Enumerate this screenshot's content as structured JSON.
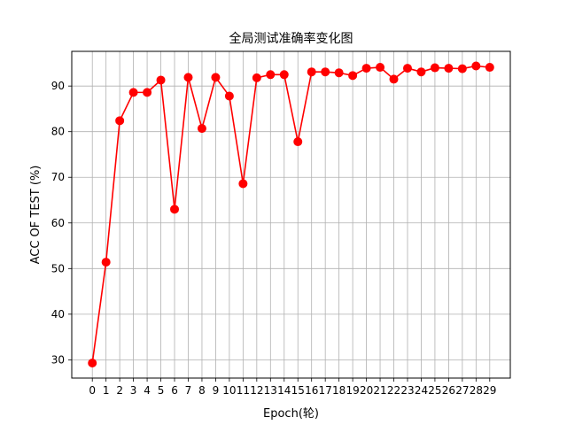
{
  "chart_data": {
    "type": "line",
    "title": "全局测试准确率变化图",
    "xlabel": "Epoch(轮)",
    "ylabel": "ACC OF TEST (%)",
    "x": [
      0,
      1,
      2,
      3,
      4,
      5,
      6,
      7,
      8,
      9,
      10,
      11,
      12,
      13,
      14,
      15,
      16,
      17,
      18,
      19,
      20,
      21,
      22,
      23,
      24,
      25,
      26,
      27,
      28,
      29
    ],
    "series": [
      {
        "values": [
          29.3,
          51.4,
          82.4,
          88.6,
          88.6,
          91.3,
          63.0,
          91.9,
          80.7,
          91.9,
          87.8,
          68.6,
          91.8,
          92.5,
          92.5,
          77.8,
          93.1,
          93.1,
          92.9,
          92.3,
          93.9,
          94.1,
          91.5,
          93.9,
          93.1,
          94.0,
          93.9,
          93.8,
          94.4,
          94.1
        ],
        "color": "#ff0000"
      }
    ],
    "xticks": [
      "0",
      "1",
      "2",
      "3",
      "4",
      "5",
      "6",
      "7",
      "8",
      "9",
      "10",
      "11",
      "12",
      "13",
      "14",
      "15",
      "16",
      "17",
      "18",
      "19",
      "20",
      "21",
      "22",
      "23",
      "24",
      "25",
      "26",
      "27",
      "28",
      "29"
    ],
    "yticks": [
      "30",
      "40",
      "50",
      "60",
      "70",
      "80",
      "90"
    ],
    "ylim": [
      26.0,
      97.6
    ],
    "xlim": [
      -1.5,
      30.5
    ],
    "grid": true,
    "line_color": "#ff0000",
    "marker": "circle"
  }
}
